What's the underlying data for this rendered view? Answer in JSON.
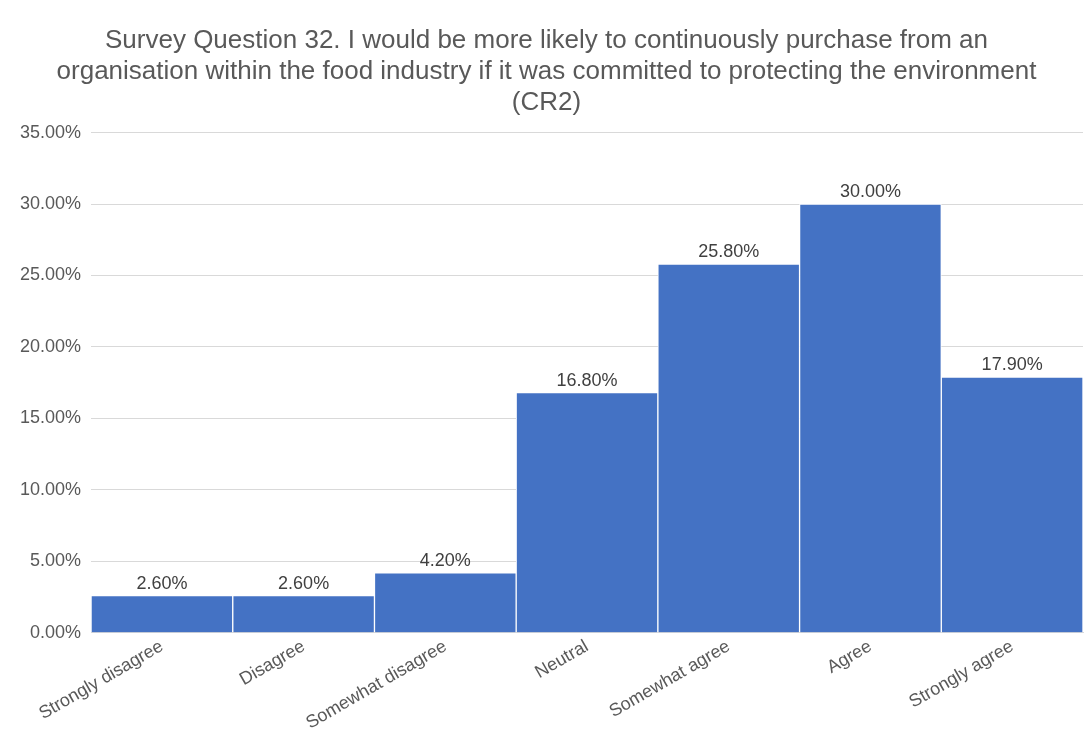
{
  "chart_data": {
    "type": "bar",
    "title": "Survey Question 32. I would be more likely to continuously purchase from an organisation within the food industry if it was committed to protecting the environment (CR2)",
    "categories": [
      "Strongly disagree",
      "Disagree",
      "Somewhat disagree",
      "Neutral",
      "Somewhat agree",
      "Agree",
      "Strongly agree"
    ],
    "values": [
      2.6,
      2.6,
      4.2,
      16.8,
      25.8,
      30.0,
      17.9
    ],
    "value_labels": [
      "2.60%",
      "2.60%",
      "4.20%",
      "16.80%",
      "25.80%",
      "30.00%",
      "17.90%"
    ],
    "color": "#4472c4",
    "ylim": [
      0,
      35
    ],
    "yticks": [
      {
        "value": 0,
        "label": "0.00%"
      },
      {
        "value": 5,
        "label": "5.00%"
      },
      {
        "value": 10,
        "label": "10.00%"
      },
      {
        "value": 15,
        "label": "15.00%"
      },
      {
        "value": 20,
        "label": "20.00%"
      },
      {
        "value": 25,
        "label": "25.00%"
      },
      {
        "value": 30,
        "label": "30.00%"
      },
      {
        "value": 35,
        "label": "35.00%"
      }
    ],
    "grid": "y",
    "legend": false
  }
}
